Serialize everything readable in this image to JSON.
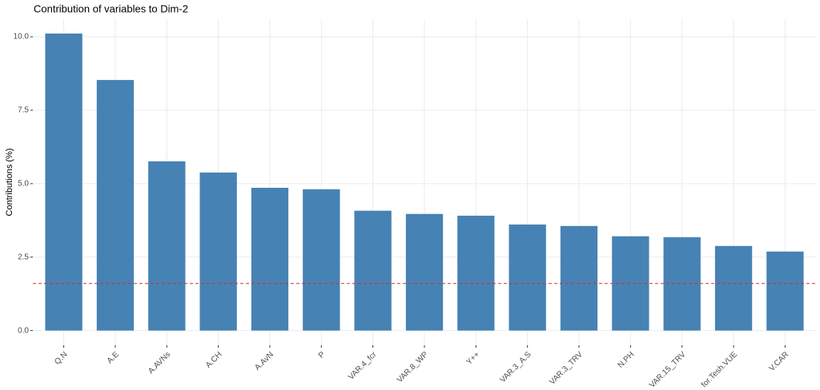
{
  "chart_data": {
    "type": "bar",
    "title": "Contribution of variables to Dim-2",
    "y_label": "Contributions (%)",
    "categories": [
      "Q.N",
      "A.E",
      "A.AVNs",
      "A.CH",
      "A.AvN",
      "P",
      "VAR.4_fcr",
      "VAR.8_WP",
      "Y++",
      "VAR.3_A.S",
      "VAR.3_TRV",
      "N.PH",
      "VAR.15_TRV",
      "for.Tesh.VUE",
      "V.CAR"
    ],
    "values": [
      10.11,
      8.53,
      5.76,
      5.38,
      4.86,
      4.81,
      4.08,
      3.97,
      3.91,
      3.61,
      3.56,
      3.21,
      3.18,
      2.88,
      2.69
    ],
    "color": "#4682b4",
    "reference_line": {
      "value": 1.6,
      "color": "#cc3333"
    },
    "ylim": [
      -0.5,
      10.6
    ],
    "yticks": [
      {
        "value": 0,
        "label": "0.0"
      },
      2.5,
      {
        "value": 5,
        "label": "5.0"
      },
      7.5,
      {
        "value": 10,
        "label": "10.0"
      }
    ],
    "grid": true
  }
}
